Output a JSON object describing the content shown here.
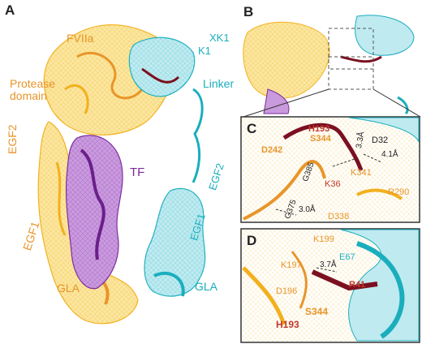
{
  "panels": {
    "A": {
      "letter": "A",
      "labels": {
        "fviia": "FVIIa",
        "protease": "Protease\ndomain",
        "xk1": "XK1",
        "k1": "K1",
        "linker": "Linker",
        "egf2_left": "EGF2",
        "tf": "TF",
        "egf2_right": "EGF2",
        "egf1_left": "EGF1",
        "egf1_right": "EGF1",
        "gla_left": "GLA",
        "gla_right": "GLA"
      }
    },
    "B": {
      "letter": "B"
    },
    "C": {
      "letter": "C",
      "labels": {
        "h193": "H193",
        "s344": "S344",
        "d242": "D242",
        "d32": "D32",
        "d3a": "3.3Å",
        "d41a": "4.1Å",
        "k341": "K341",
        "g385": "G385",
        "k36": "K36",
        "r290": "R290",
        "g375": "G375",
        "d30a": "3.0Å",
        "d338": "D338"
      }
    },
    "D": {
      "letter": "D",
      "labels": {
        "k199": "K199",
        "e67": "E67",
        "k197": "K197",
        "d37a": "3.7Å",
        "d196": "D196",
        "r41": "R41",
        "s344": "S344",
        "h193": "H193"
      }
    }
  },
  "colors": {
    "fviia": "#f2b01e",
    "fviia_label": "#e8952a",
    "tfpi": "#1aaebd",
    "tf": "#7a2a9a",
    "linker_dark": "#7b1020"
  }
}
